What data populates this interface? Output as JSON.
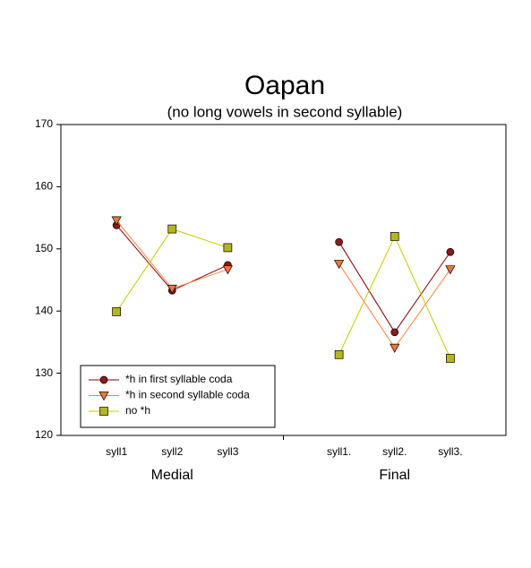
{
  "chart_data": {
    "type": "line",
    "title": "Oapan",
    "subtitle": "(no long vowels in second syllable)",
    "categories": [
      "syll1",
      "syll2",
      "syll3",
      null,
      "syll1.",
      "syll2.",
      "syll3."
    ],
    "group_labels": [
      "Medial",
      "Final"
    ],
    "series": [
      {
        "name": "*h in first syllable coda",
        "color": "#800000",
        "marker_color": "#8b1a1a",
        "marker": "circle",
        "values": [
          153.8,
          143.3,
          147.4,
          null,
          151.1,
          136.6,
          149.5
        ]
      },
      {
        "name": "*h in second syllable coda",
        "color": "#ff8040",
        "marker_color": "#e8783a",
        "marker": "triangle-down",
        "values": [
          154.6,
          143.6,
          146.7,
          null,
          147.6,
          134.1,
          146.7
        ]
      },
      {
        "name": "no *h",
        "color": "#c8c800",
        "marker_color": "#b5b520",
        "marker": "square",
        "values": [
          139.9,
          153.2,
          150.2,
          null,
          133.0,
          152.0,
          132.4
        ]
      }
    ],
    "ylim": [
      120,
      170
    ],
    "yticks": [
      120,
      130,
      140,
      150,
      160,
      170
    ],
    "grid": false,
    "legend": "lower left"
  }
}
